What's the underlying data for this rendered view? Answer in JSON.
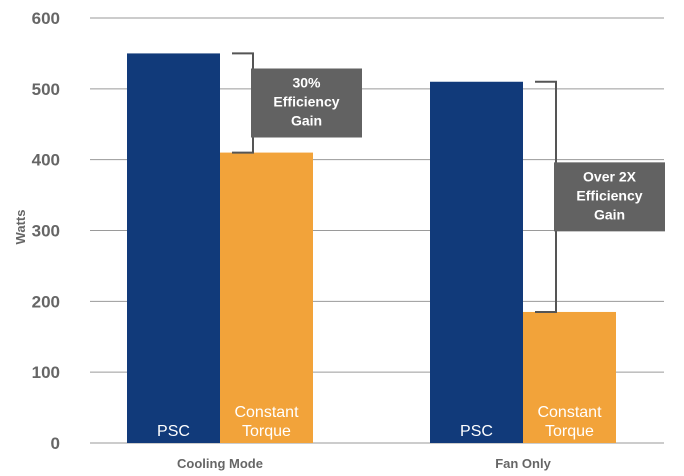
{
  "chart_data": {
    "type": "bar",
    "title": "",
    "xlabel": "",
    "ylabel": "Watts",
    "ylim": [
      0,
      600
    ],
    "yticks": [
      0,
      100,
      200,
      300,
      400,
      500,
      600
    ],
    "grid": true,
    "categories": [
      "Cooling Mode",
      "Fan Only"
    ],
    "series": [
      {
        "label_lines": [
          "PSC"
        ],
        "color": "#113a7a",
        "values": [
          550,
          510
        ]
      },
      {
        "label_lines": [
          "Constant",
          "Torque"
        ],
        "color": "#f2a33a",
        "values": [
          410,
          185
        ]
      }
    ],
    "annotations": [
      {
        "category_index": 0,
        "lines": [
          "30%",
          "Efficiency",
          "Gain"
        ]
      },
      {
        "category_index": 1,
        "lines": [
          "Over 2X",
          "Efficiency",
          "Gain"
        ]
      }
    ],
    "colors": {
      "grid": "#9a9a9a",
      "text": "#666666",
      "callout": "#626262",
      "bracket": "#555555"
    }
  }
}
